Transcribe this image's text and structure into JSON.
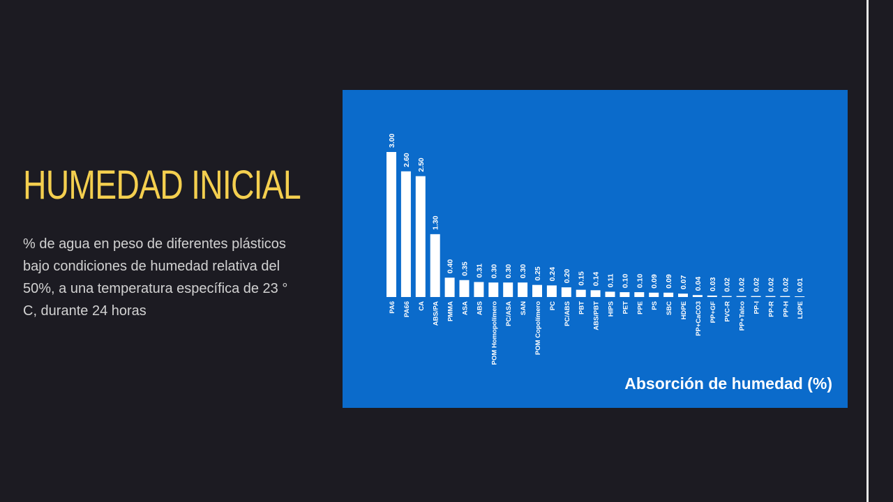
{
  "slide": {
    "heading": "HUMEDAD INICIAL",
    "description_lines": [
      "% de agua en peso de diferentes plásticos",
      "bajo condiciones de humedad relativa del",
      "50%, a una temperatura específica de 23 °",
      "C, durante 24 horas"
    ]
  },
  "colors": {
    "background": "#1c1b22",
    "heading": "#f4cf4f",
    "text": "#d2d2d2",
    "chart_background": "#0b6bcb",
    "bars": "#ffffff"
  },
  "chart_data": {
    "type": "bar",
    "title": "Absorción de humedad (%)",
    "categories": [
      "PA6",
      "PA66",
      "CA",
      "ABS/PA",
      "PMMA",
      "ASA",
      "ABS",
      "POM Homopolímero",
      "PC/ASA",
      "SAN",
      "POM Copolímero",
      "PC",
      "PC/ABS",
      "PBT",
      "ABS/PBT",
      "HIPS",
      "PET",
      "PPE",
      "PS",
      "SBC",
      "HDPE",
      "PP+CaCO3",
      "PP+GF",
      "PVC-R",
      "PP+Talco",
      "PP-I",
      "PP-R",
      "PP-H",
      "LDPE"
    ],
    "values": [
      3.0,
      2.6,
      2.5,
      1.3,
      0.4,
      0.35,
      0.31,
      0.3,
      0.3,
      0.3,
      0.25,
      0.24,
      0.2,
      0.15,
      0.14,
      0.11,
      0.1,
      0.1,
      0.09,
      0.09,
      0.07,
      0.04,
      0.03,
      0.02,
      0.02,
      0.02,
      0.02,
      0.02,
      0.01
    ],
    "value_labels": [
      "3.00",
      "2.60",
      "2.50",
      "1.30",
      "0.40",
      "0.35",
      "0.31",
      "0.30",
      "0.30",
      "0.30",
      "0.25",
      "0.24",
      "0.20",
      "0.15",
      "0.14",
      "0.11",
      "0.10",
      "0.10",
      "0.09",
      "0.09",
      "0.07",
      "0.04",
      "0.03",
      "0.02",
      "0.02",
      "0.02",
      "0.02",
      "0.02",
      "0.01"
    ],
    "ylim": [
      0,
      3.0
    ],
    "orientation": "vertical",
    "label_rotation": "vertical"
  }
}
